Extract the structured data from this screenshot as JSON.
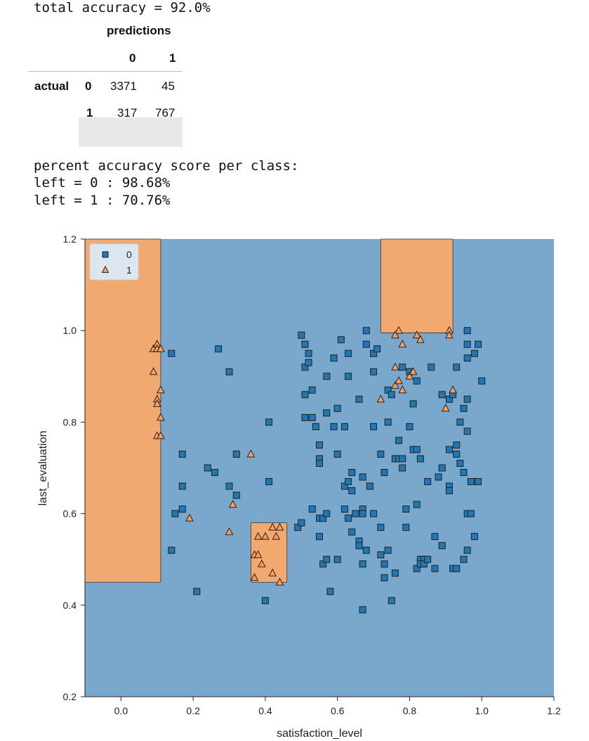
{
  "output": {
    "total_accuracy": "total accuracy = 92.0%",
    "per_class_header": "percent accuracy score per class:",
    "per_class_0": "left = 0 : 98.68%",
    "per_class_1": "left = 1 : 70.76%"
  },
  "confusion_table": {
    "col_group": "predictions",
    "col_0": "0",
    "col_1": "1",
    "row_group": "actual",
    "row_0": "0",
    "row_1": "1",
    "r0c0": "3371",
    "r0c1": "45",
    "r1c0": "317",
    "r1c1": "767"
  },
  "chart_data": {
    "type": "scatter",
    "xlabel": "satisfaction_level",
    "ylabel": "last_evaluation",
    "xlim": [
      -0.1,
      1.2
    ],
    "ylim": [
      0.2,
      1.2
    ],
    "xticks": [
      "0.0",
      "0.2",
      "0.4",
      "0.6",
      "0.8",
      "1.0",
      "1.2"
    ],
    "yticks": [
      "0.2",
      "0.4",
      "0.6",
      "0.8",
      "1.0",
      "1.2"
    ],
    "legend_position": "top-left",
    "legend": [
      {
        "label": "0",
        "marker": "square",
        "color": "#1f77b4"
      },
      {
        "label": "1",
        "marker": "triangle",
        "color": "#ff9f5a"
      }
    ],
    "background_color": "#7aa7cc",
    "region_color": "#f2a970",
    "regions_class_1": [
      {
        "x": [
          -0.1,
          0.11
        ],
        "y": [
          0.45,
          1.2
        ]
      },
      {
        "x": [
          0.36,
          0.46
        ],
        "y": [
          0.45,
          0.58
        ]
      },
      {
        "x": [
          0.72,
          0.92
        ],
        "y": [
          0.995,
          1.2
        ]
      }
    ],
    "series": [
      {
        "name": "0",
        "points": [
          [
            0.14,
            0.95
          ],
          [
            0.27,
            0.96
          ],
          [
            0.3,
            0.91
          ],
          [
            0.17,
            0.73
          ],
          [
            0.17,
            0.66
          ],
          [
            0.15,
            0.6
          ],
          [
            0.17,
            0.61
          ],
          [
            0.14,
            0.52
          ],
          [
            0.21,
            0.43
          ],
          [
            0.24,
            0.7
          ],
          [
            0.26,
            0.69
          ],
          [
            0.3,
            0.66
          ],
          [
            0.32,
            0.64
          ],
          [
            0.32,
            0.73
          ],
          [
            0.41,
            0.8
          ],
          [
            0.41,
            0.67
          ],
          [
            0.4,
            0.41
          ],
          [
            0.49,
            0.57
          ],
          [
            0.5,
            0.58
          ],
          [
            0.5,
            0.99
          ],
          [
            0.51,
            0.97
          ],
          [
            0.52,
            0.95
          ],
          [
            0.51,
            0.92
          ],
          [
            0.52,
            0.93
          ],
          [
            0.51,
            0.86
          ],
          [
            0.53,
            0.87
          ],
          [
            0.51,
            0.81
          ],
          [
            0.53,
            0.81
          ],
          [
            0.54,
            0.79
          ],
          [
            0.55,
            0.75
          ],
          [
            0.55,
            0.72
          ],
          [
            0.55,
            0.71
          ],
          [
            0.53,
            0.61
          ],
          [
            0.55,
            0.59
          ],
          [
            0.56,
            0.59
          ],
          [
            0.57,
            0.6
          ],
          [
            0.55,
            0.55
          ],
          [
            0.56,
            0.49
          ],
          [
            0.57,
            0.5
          ],
          [
            0.58,
            0.43
          ],
          [
            0.57,
            0.9
          ],
          [
            0.59,
            0.94
          ],
          [
            0.57,
            0.82
          ],
          [
            0.6,
            0.83
          ],
          [
            0.59,
            0.79
          ],
          [
            0.61,
            0.98
          ],
          [
            0.6,
            0.73
          ],
          [
            0.6,
            0.5
          ],
          [
            0.62,
            0.79
          ],
          [
            0.62,
            0.66
          ],
          [
            0.62,
            0.61
          ],
          [
            0.63,
            0.95
          ],
          [
            0.63,
            0.9
          ],
          [
            0.63,
            0.67
          ],
          [
            0.64,
            0.69
          ],
          [
            0.64,
            0.65
          ],
          [
            0.63,
            0.59
          ],
          [
            0.64,
            0.56
          ],
          [
            0.65,
            0.6
          ],
          [
            0.66,
            0.85
          ],
          [
            0.66,
            0.54
          ],
          [
            0.67,
            0.61
          ],
          [
            0.67,
            0.6
          ],
          [
            0.67,
            0.68
          ],
          [
            0.66,
            0.53
          ],
          [
            0.67,
            0.49
          ],
          [
            0.67,
            0.39
          ],
          [
            0.68,
            1.0
          ],
          [
            0.68,
            0.97
          ],
          [
            0.68,
            0.52
          ],
          [
            0.69,
            0.66
          ],
          [
            0.7,
            0.95
          ],
          [
            0.7,
            0.91
          ],
          [
            0.7,
            0.79
          ],
          [
            0.7,
            0.6
          ],
          [
            0.71,
            0.96
          ],
          [
            0.72,
            0.73
          ],
          [
            0.72,
            0.51
          ],
          [
            0.72,
            0.57
          ],
          [
            0.73,
            0.69
          ],
          [
            0.73,
            0.49
          ],
          [
            0.73,
            0.46
          ],
          [
            0.74,
            0.87
          ],
          [
            0.74,
            0.8
          ],
          [
            0.74,
            0.52
          ],
          [
            0.75,
            0.86
          ],
          [
            0.75,
            0.41
          ],
          [
            0.76,
            0.72
          ],
          [
            0.76,
            0.47
          ],
          [
            0.77,
            0.76
          ],
          [
            0.77,
            0.72
          ],
          [
            0.78,
            0.72
          ],
          [
            0.78,
            0.7
          ],
          [
            0.78,
            0.92
          ],
          [
            0.79,
            0.61
          ],
          [
            0.79,
            0.57
          ],
          [
            0.8,
            0.79
          ],
          [
            0.8,
            0.91
          ],
          [
            0.81,
            0.74
          ],
          [
            0.81,
            0.84
          ],
          [
            0.82,
            0.89
          ],
          [
            0.82,
            0.74
          ],
          [
            0.82,
            0.62
          ],
          [
            0.82,
            0.48
          ],
          [
            0.83,
            0.72
          ],
          [
            0.83,
            0.5
          ],
          [
            0.83,
            0.49
          ],
          [
            0.84,
            0.5
          ],
          [
            0.84,
            0.49
          ],
          [
            0.85,
            0.67
          ],
          [
            0.85,
            0.5
          ],
          [
            0.86,
            0.92
          ],
          [
            0.87,
            0.55
          ],
          [
            0.87,
            0.48
          ],
          [
            0.88,
            0.68
          ],
          [
            0.89,
            0.7
          ],
          [
            0.89,
            0.53
          ],
          [
            0.89,
            0.86
          ],
          [
            0.91,
            0.85
          ],
          [
            0.91,
            0.74
          ],
          [
            0.91,
            0.66
          ],
          [
            0.91,
            0.65
          ],
          [
            0.92,
            0.48
          ],
          [
            0.92,
            0.86
          ],
          [
            0.93,
            0.73
          ],
          [
            0.93,
            0.75
          ],
          [
            0.93,
            0.92
          ],
          [
            0.93,
            0.48
          ],
          [
            0.94,
            0.71
          ],
          [
            0.94,
            0.8
          ],
          [
            0.95,
            0.83
          ],
          [
            0.95,
            0.69
          ],
          [
            0.95,
            0.5
          ],
          [
            0.96,
            0.94
          ],
          [
            0.96,
            0.97
          ],
          [
            0.96,
            1.0
          ],
          [
            0.96,
            0.85
          ],
          [
            0.96,
            0.78
          ],
          [
            0.96,
            0.6
          ],
          [
            0.96,
            0.52
          ],
          [
            0.97,
            0.6
          ],
          [
            0.97,
            0.67
          ],
          [
            0.98,
            0.95
          ],
          [
            0.98,
            0.55
          ],
          [
            0.99,
            0.97
          ],
          [
            0.99,
            0.67
          ],
          [
            1.0,
            0.89
          ]
        ]
      },
      {
        "name": "1",
        "points": [
          [
            0.09,
            0.96
          ],
          [
            0.1,
            0.97
          ],
          [
            0.1,
            0.96
          ],
          [
            0.11,
            0.96
          ],
          [
            0.09,
            0.91
          ],
          [
            0.11,
            0.87
          ],
          [
            0.1,
            0.85
          ],
          [
            0.1,
            0.84
          ],
          [
            0.11,
            0.81
          ],
          [
            0.1,
            0.77
          ],
          [
            0.11,
            0.77
          ],
          [
            0.19,
            0.59
          ],
          [
            0.31,
            0.62
          ],
          [
            0.3,
            0.56
          ],
          [
            0.36,
            0.73
          ],
          [
            0.37,
            0.51
          ],
          [
            0.37,
            0.46
          ],
          [
            0.38,
            0.55
          ],
          [
            0.38,
            0.51
          ],
          [
            0.39,
            0.49
          ],
          [
            0.4,
            0.55
          ],
          [
            0.42,
            0.57
          ],
          [
            0.42,
            0.47
          ],
          [
            0.43,
            0.55
          ],
          [
            0.44,
            0.57
          ],
          [
            0.44,
            0.45
          ],
          [
            0.72,
            0.85
          ],
          [
            0.76,
            0.92
          ],
          [
            0.76,
            0.88
          ],
          [
            0.77,
            0.89
          ],
          [
            0.78,
            0.87
          ],
          [
            0.77,
            1.0
          ],
          [
            0.76,
            0.99
          ],
          [
            0.78,
            0.97
          ],
          [
            0.8,
            0.9
          ],
          [
            0.81,
            0.91
          ],
          [
            0.82,
            0.99
          ],
          [
            0.83,
            0.98
          ],
          [
            0.9,
            0.83
          ],
          [
            0.91,
            1.0
          ],
          [
            0.91,
            0.99
          ],
          [
            0.92,
            0.87
          ]
        ]
      }
    ]
  }
}
